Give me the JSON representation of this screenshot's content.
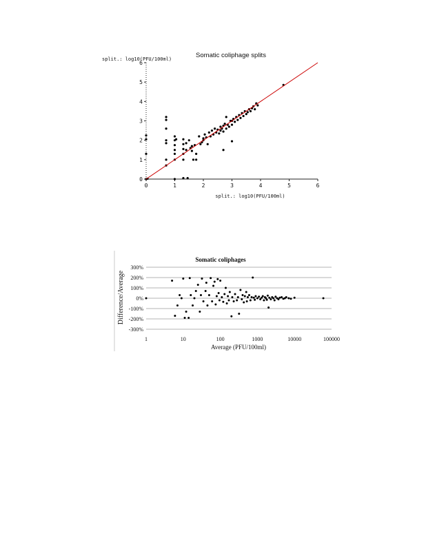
{
  "colors": {
    "fit_line": "#cc0000",
    "points": "#000000",
    "grid": "#9a9a9a"
  },
  "chart_data": [
    {
      "type": "scatter",
      "title": "Somatic coliphage splits",
      "xlabel": "split.: log10(PFU/100ml)",
      "ylabel": "split.: log10(PFU/100ml)",
      "xlim": [
        0,
        6
      ],
      "ylim": [
        0,
        6
      ],
      "x_ticks": [
        "0",
        "1",
        "2",
        "3",
        "4",
        "5",
        "6"
      ],
      "y_ticks": [
        "0",
        "1",
        "2",
        "3",
        "4",
        "5",
        "6"
      ],
      "grid": false,
      "fit_line": {
        "x": [
          0,
          6
        ],
        "y": [
          0,
          6
        ]
      },
      "points": [
        [
          0,
          2.25
        ],
        [
          0,
          2.05
        ],
        [
          0,
          1.3
        ],
        [
          0,
          0
        ],
        [
          0.05,
          0.02
        ],
        [
          0.7,
          3.2
        ],
        [
          0.7,
          3.05
        ],
        [
          0.7,
          2.6
        ],
        [
          0.7,
          2.0
        ],
        [
          0.7,
          1.85
        ],
        [
          0.7,
          1.0
        ],
        [
          0.7,
          0.7
        ],
        [
          1.0,
          2.2
        ],
        [
          1.0,
          2.0
        ],
        [
          1.0,
          1.75
        ],
        [
          1.0,
          1.5
        ],
        [
          1.0,
          1.3
        ],
        [
          1.0,
          1.0
        ],
        [
          1.0,
          0
        ],
        [
          1.05,
          2.05
        ],
        [
          1.3,
          2.05
        ],
        [
          1.3,
          1.8
        ],
        [
          1.3,
          1.55
        ],
        [
          1.3,
          1.3
        ],
        [
          1.3,
          1.0
        ],
        [
          1.3,
          0.05
        ],
        [
          1.4,
          1.85
        ],
        [
          1.4,
          1.5
        ],
        [
          1.45,
          0.05
        ],
        [
          1.5,
          2.0
        ],
        [
          1.55,
          1.6
        ],
        [
          1.6,
          1.45
        ],
        [
          1.6,
          1.7
        ],
        [
          1.65,
          1.0
        ],
        [
          1.7,
          1.75
        ],
        [
          1.75,
          1.3
        ],
        [
          1.75,
          1.0
        ],
        [
          1.85,
          2.2
        ],
        [
          1.9,
          1.8
        ],
        [
          1.95,
          1.9
        ],
        [
          2.0,
          2.0
        ],
        [
          2.0,
          2.1
        ],
        [
          2.05,
          2.3
        ],
        [
          2.1,
          2.15
        ],
        [
          2.15,
          1.8
        ],
        [
          2.2,
          2.4
        ],
        [
          2.25,
          2.2
        ],
        [
          2.3,
          2.5
        ],
        [
          2.35,
          2.3
        ],
        [
          2.4,
          2.6
        ],
        [
          2.45,
          2.4
        ],
        [
          2.5,
          2.55
        ],
        [
          2.55,
          2.35
        ],
        [
          2.6,
          2.7
        ],
        [
          2.6,
          2.5
        ],
        [
          2.65,
          2.6
        ],
        [
          2.7,
          2.75
        ],
        [
          2.7,
          2.45
        ],
        [
          2.7,
          1.5
        ],
        [
          2.75,
          2.85
        ],
        [
          2.8,
          2.6
        ],
        [
          2.8,
          3.2
        ],
        [
          2.85,
          2.8
        ],
        [
          2.9,
          2.7
        ],
        [
          2.95,
          3.0
        ],
        [
          3.0,
          3.0
        ],
        [
          3.0,
          2.8
        ],
        [
          3.0,
          1.95
        ],
        [
          3.05,
          3.1
        ],
        [
          3.1,
          2.95
        ],
        [
          3.15,
          3.2
        ],
        [
          3.2,
          3.05
        ],
        [
          3.25,
          3.3
        ],
        [
          3.3,
          3.15
        ],
        [
          3.35,
          3.4
        ],
        [
          3.4,
          3.25
        ],
        [
          3.45,
          3.5
        ],
        [
          3.5,
          3.35
        ],
        [
          3.55,
          3.45
        ],
        [
          3.6,
          3.6
        ],
        [
          3.65,
          3.5
        ],
        [
          3.7,
          3.65
        ],
        [
          3.75,
          3.75
        ],
        [
          3.8,
          3.6
        ],
        [
          3.85,
          3.9
        ],
        [
          3.9,
          3.8
        ],
        [
          4.8,
          4.85
        ]
      ]
    },
    {
      "type": "scatter",
      "title": "Somatic coliphages",
      "xlabel": "Average (PFU/100ml)",
      "ylabel": "Difference/Average",
      "x_scale": "log",
      "xlim": [
        1,
        100000
      ],
      "ylim": [
        -3,
        3
      ],
      "x_ticks": [
        "1",
        "10",
        "100",
        "1000",
        "10000",
        "100000"
      ],
      "y_ticks": [
        "-300%",
        "-200%",
        "-100%",
        "0%",
        "100%",
        "200%",
        "300%"
      ],
      "grid": true,
      "points": [
        [
          1,
          0
        ],
        [
          5,
          1.7
        ],
        [
          6,
          -1.7
        ],
        [
          7,
          -0.7
        ],
        [
          8,
          0.3
        ],
        [
          9,
          0
        ],
        [
          10,
          1.9
        ],
        [
          11,
          -1.9
        ],
        [
          12,
          -1.3
        ],
        [
          14,
          -1.9
        ],
        [
          15,
          1.95
        ],
        [
          16,
          0.3
        ],
        [
          18,
          -0.7
        ],
        [
          20,
          0
        ],
        [
          22,
          0.7
        ],
        [
          25,
          1.3
        ],
        [
          28,
          -1.3
        ],
        [
          30,
          0.3
        ],
        [
          32,
          1.9
        ],
        [
          35,
          -0.3
        ],
        [
          40,
          0.7
        ],
        [
          42,
          1.5
        ],
        [
          45,
          -0.7
        ],
        [
          50,
          0.3
        ],
        [
          55,
          1.95
        ],
        [
          60,
          -0.3
        ],
        [
          65,
          1.2
        ],
        [
          70,
          1.6
        ],
        [
          75,
          -0.6
        ],
        [
          80,
          0.2
        ],
        [
          85,
          1.85
        ],
        [
          90,
          0.5
        ],
        [
          95,
          -0.2
        ],
        [
          100,
          1.7
        ],
        [
          110,
          0.1
        ],
        [
          120,
          -0.35
        ],
        [
          130,
          0.4
        ],
        [
          140,
          1.0
        ],
        [
          150,
          -0.5
        ],
        [
          160,
          0.2
        ],
        [
          170,
          -0.2
        ],
        [
          180,
          0.6
        ],
        [
          200,
          -1.75
        ],
        [
          210,
          0.1
        ],
        [
          230,
          -0.3
        ],
        [
          250,
          0.4
        ],
        [
          280,
          -0.2
        ],
        [
          300,
          0.1
        ],
        [
          320,
          -1.5
        ],
        [
          350,
          0.8
        ],
        [
          380,
          -0.1
        ],
        [
          400,
          0.3
        ],
        [
          430,
          -0.4
        ],
        [
          460,
          0.2
        ],
        [
          500,
          0.6
        ],
        [
          520,
          -0.3
        ],
        [
          550,
          0.1
        ],
        [
          600,
          0.3
        ],
        [
          650,
          -0.2
        ],
        [
          700,
          0.1
        ],
        [
          750,
          2.0
        ],
        [
          800,
          0.05
        ],
        [
          850,
          -0.15
        ],
        [
          900,
          0.2
        ],
        [
          1000,
          0
        ],
        [
          1100,
          0.15
        ],
        [
          1200,
          -0.1
        ],
        [
          1300,
          0.05
        ],
        [
          1400,
          0.2
        ],
        [
          1500,
          -0.2
        ],
        [
          1600,
          0.1
        ],
        [
          1700,
          0
        ],
        [
          1800,
          -0.15
        ],
        [
          1900,
          0.25
        ],
        [
          2000,
          -0.9
        ],
        [
          2100,
          0.05
        ],
        [
          2300,
          -0.1
        ],
        [
          2500,
          0.1
        ],
        [
          2700,
          0
        ],
        [
          2900,
          -0.2
        ],
        [
          3100,
          0.15
        ],
        [
          3400,
          0
        ],
        [
          3700,
          -0.1
        ],
        [
          4000,
          0.05
        ],
        [
          4500,
          0.1
        ],
        [
          5000,
          -0.05
        ],
        [
          5500,
          0
        ],
        [
          6000,
          0.1
        ],
        [
          7000,
          0
        ],
        [
          8000,
          -0.05
        ],
        [
          10000,
          0.05
        ],
        [
          60000,
          0
        ]
      ]
    }
  ]
}
